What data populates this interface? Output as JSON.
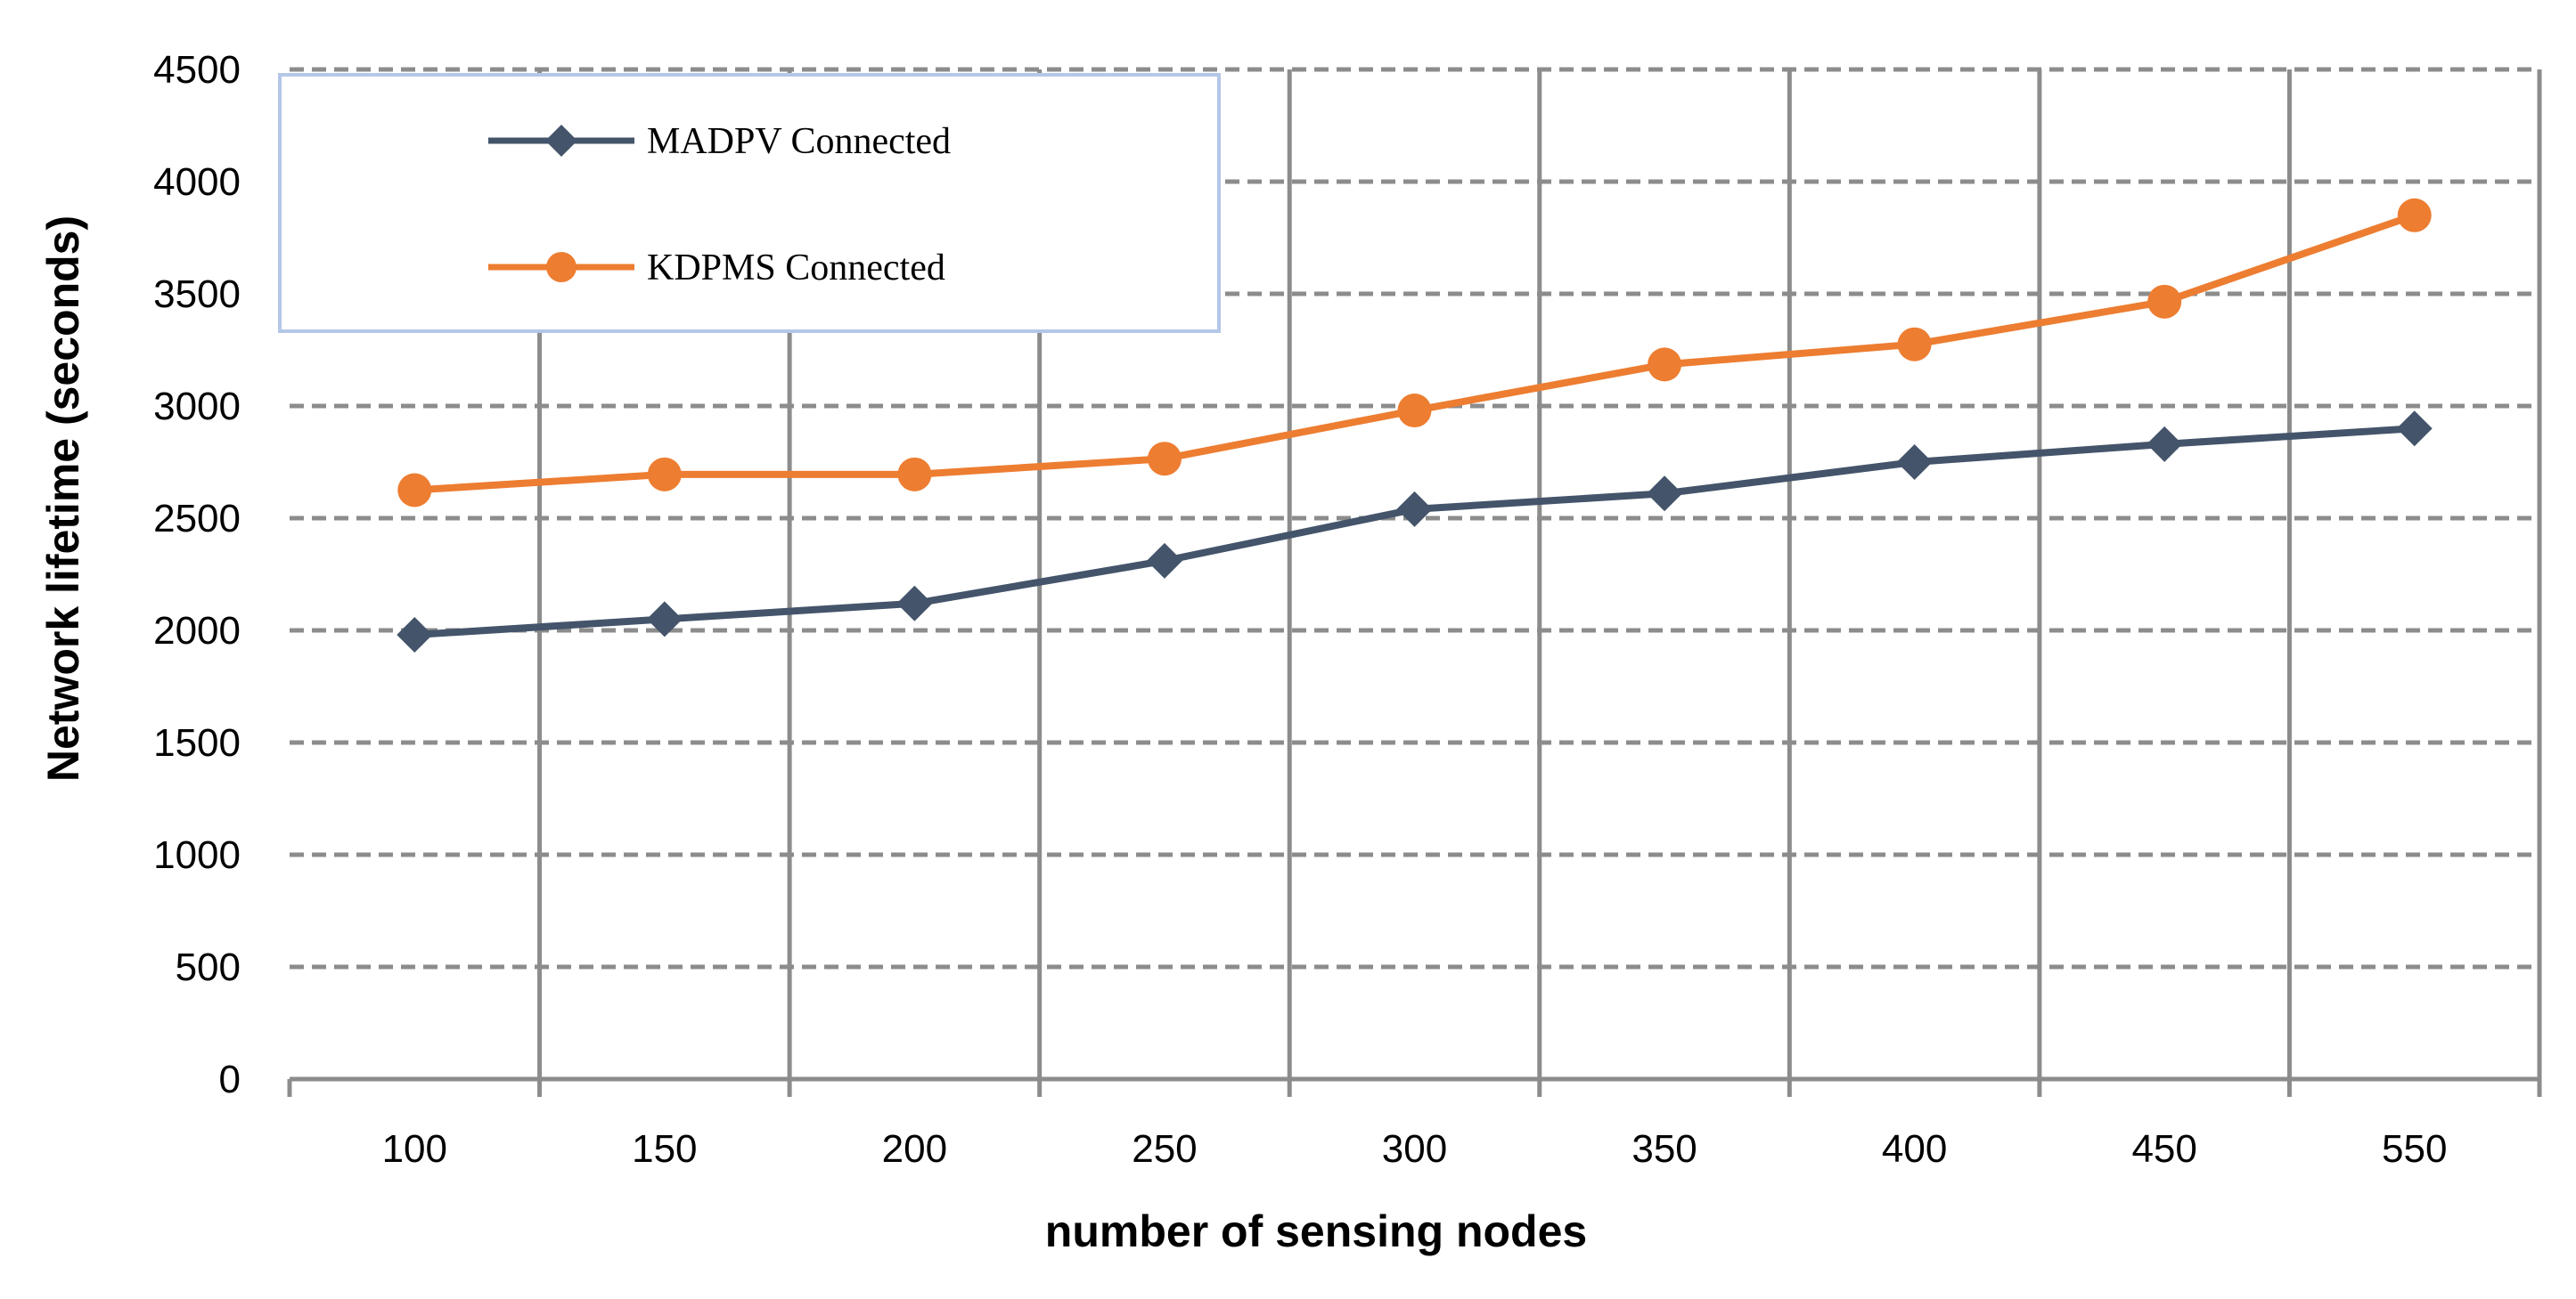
{
  "chart_data": {
    "type": "line",
    "title": "",
    "xlabel": "number of sensing nodes",
    "ylabel": "Network lifetime (seconds)",
    "categories": [
      "100",
      "150",
      "200",
      "250",
      "300",
      "350",
      "400",
      "450",
      "550"
    ],
    "ylim": [
      0,
      4500
    ],
    "yticks": [
      0,
      500,
      1000,
      1500,
      2000,
      2500,
      3000,
      3500,
      4000,
      4500
    ],
    "grid": true,
    "legend_position": "top-left",
    "series": [
      {
        "name": "MADPV Connected",
        "color": "#44546A",
        "marker": "diamond",
        "values": [
          1980,
          2050,
          2120,
          2310,
          2540,
          2610,
          2750,
          2830,
          2900
        ]
      },
      {
        "name": "KDPMS Connected",
        "color": "#ED7D31",
        "marker": "circle",
        "values": [
          2625,
          2695,
          2695,
          2765,
          2980,
          3185,
          3275,
          3465,
          3850
        ]
      }
    ]
  }
}
